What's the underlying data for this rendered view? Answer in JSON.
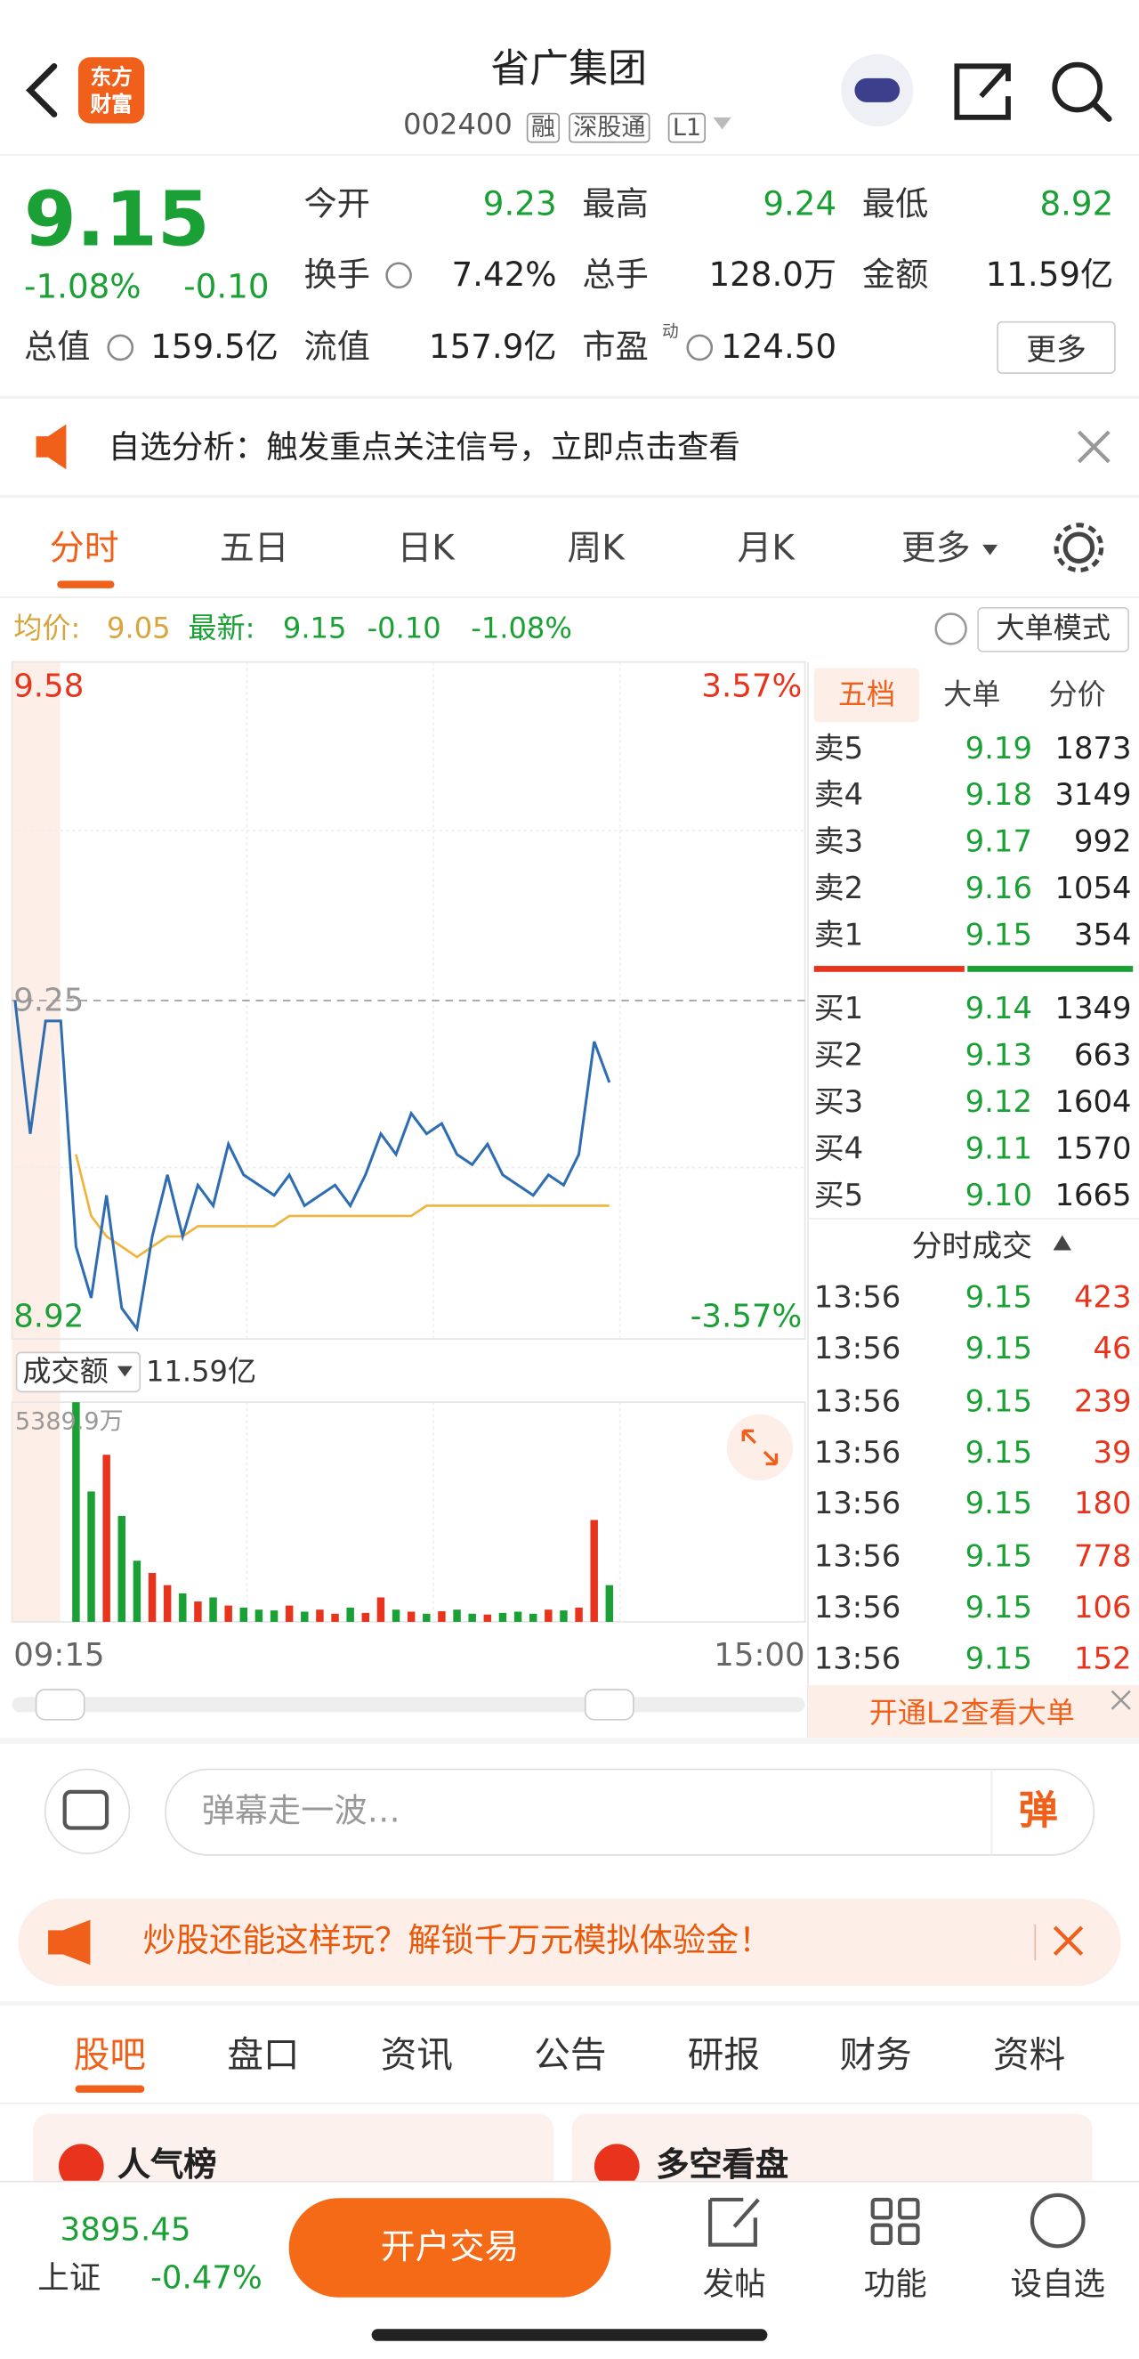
{
  "header": {
    "logo": [
      "东方",
      "财富"
    ],
    "title": "省广集团",
    "code": "002400",
    "tags": [
      "融",
      "深股通",
      "L1"
    ]
  },
  "quote": {
    "price": "9.15",
    "change_pct": "-1.08%",
    "change": "-0.10",
    "fields": [
      {
        "label": "今开",
        "value": "9.23"
      },
      {
        "label": "最高",
        "value": "9.24"
      },
      {
        "label": "最低",
        "value": "8.92"
      },
      {
        "label": "换手",
        "value": "7.42%"
      },
      {
        "label": "总手",
        "value": "128.0万"
      },
      {
        "label": "金额",
        "value": "11.59亿"
      },
      {
        "label": "总值",
        "value": "159.5亿"
      },
      {
        "label": "流值",
        "value": "157.9亿"
      },
      {
        "label": "市盈",
        "value": "124.50",
        "sup": "动"
      }
    ],
    "more": "更多"
  },
  "notice": "自选分析：触发重点关注信号，立即点击查看",
  "tabs": [
    "分时",
    "五日",
    "日K",
    "周K",
    "月K",
    "更多"
  ],
  "summary": {
    "avg_label": "均价:",
    "avg": "9.05",
    "latest_label": "最新:",
    "latest": "9.15",
    "change": "-0.10",
    "change_pct": "-1.08%",
    "mode": "大单模式"
  },
  "intraday": {
    "ylim": [
      8.92,
      9.58
    ],
    "yticks": [
      9.58,
      9.25,
      8.92
    ],
    "pct_ticks": [
      {
        "value": 3.57,
        "label": "3.57%"
      },
      {
        "value": -3.57,
        "label": "-3.57%"
      }
    ],
    "price": [
      9.25,
      9.12,
      9.23,
      9.23,
      9.01,
      8.96,
      9.06,
      8.95,
      8.93,
      9.02,
      9.08,
      9.02,
      9.07,
      9.05,
      9.11,
      9.08,
      9.07,
      9.06,
      9.08,
      9.05,
      9.06,
      9.07,
      9.05,
      9.08,
      9.12,
      9.1,
      9.14,
      9.12,
      9.13,
      9.1,
      9.09,
      9.11,
      9.08,
      9.07,
      9.06,
      9.08,
      9.07,
      9.1,
      9.21,
      9.17
    ],
    "avg": [
      null,
      null,
      null,
      null,
      9.1,
      9.04,
      9.02,
      9.01,
      9.0,
      9.01,
      9.02,
      9.02,
      9.03,
      9.03,
      9.03,
      9.03,
      9.03,
      9.03,
      9.04,
      9.04,
      9.04,
      9.04,
      9.04,
      9.04,
      9.04,
      9.04,
      9.04,
      9.05,
      9.05,
      9.05,
      9.05,
      9.05,
      9.05,
      9.05,
      9.05,
      9.05,
      9.05,
      9.05,
      9.05,
      9.05
    ],
    "price_color": "#2f6db3",
    "avg_color": "#f0b43c",
    "times": [
      "09:15",
      "15:00"
    ]
  },
  "turnover": {
    "label": "成交额",
    "total": "11.59亿",
    "ylim": [
      0,
      5389.9
    ],
    "yticks": [
      {
        "value": 5389.9,
        "label": "5389.9万"
      }
    ],
    "values": [
      null,
      null,
      null,
      null,
      5389.9,
      3200,
      4100,
      2600,
      1500,
      1200,
      900,
      700,
      500,
      600,
      400,
      350,
      300,
      280,
      400,
      250,
      300,
      200,
      350,
      220,
      600,
      300,
      250,
      200,
      260,
      300,
      200,
      180,
      220,
      250,
      200,
      300,
      280,
      350,
      2500,
      900
    ],
    "up_color": "#e8341c",
    "down_color": "#1aa034"
  },
  "order_book": {
    "tabs": [
      "五档",
      "大单",
      "分价"
    ],
    "asks": [
      {
        "label": "卖5",
        "price": "9.19",
        "volume": "1873"
      },
      {
        "label": "卖4",
        "price": "9.18",
        "volume": "3149"
      },
      {
        "label": "卖3",
        "price": "9.17",
        "volume": "992"
      },
      {
        "label": "卖2",
        "price": "9.16",
        "volume": "1054"
      },
      {
        "label": "卖1",
        "price": "9.15",
        "volume": "354"
      }
    ],
    "bids": [
      {
        "label": "买1",
        "price": "9.14",
        "volume": "1349"
      },
      {
        "label": "买2",
        "price": "9.13",
        "volume": "663"
      },
      {
        "label": "买3",
        "price": "9.12",
        "volume": "1604"
      },
      {
        "label": "买4",
        "price": "9.11",
        "volume": "1570"
      },
      {
        "label": "买5",
        "price": "9.10",
        "volume": "1665"
      }
    ],
    "trades_title": "分时成交",
    "trades": [
      {
        "time": "13:56",
        "price": "9.15",
        "volume": "423"
      },
      {
        "time": "13:56",
        "price": "9.15",
        "volume": "46"
      },
      {
        "time": "13:56",
        "price": "9.15",
        "volume": "239"
      },
      {
        "time": "13:56",
        "price": "9.15",
        "volume": "39"
      },
      {
        "time": "13:56",
        "price": "9.15",
        "volume": "180"
      },
      {
        "time": "13:56",
        "price": "9.15",
        "volume": "778"
      },
      {
        "time": "13:56",
        "price": "9.15",
        "volume": "106"
      },
      {
        "time": "13:56",
        "price": "9.15",
        "volume": "152"
      }
    ],
    "upgrade": "开通L2查看大单"
  },
  "comment": {
    "placeholder": "弹幕走一波…",
    "button": "弹"
  },
  "promo": "炒股还能这样玩？解锁千万元模拟体验金！",
  "section_tabs": [
    "股吧",
    "盘口",
    "资讯",
    "公告",
    "研报",
    "财务",
    "资料"
  ],
  "cards": [
    "人气榜",
    "多空看盘"
  ],
  "footer": {
    "index_value": "3895.45",
    "index_name": "上证",
    "index_change": "-0.47%",
    "trade": "开户交易",
    "nav": [
      "发帖",
      "功能",
      "设自选"
    ]
  }
}
